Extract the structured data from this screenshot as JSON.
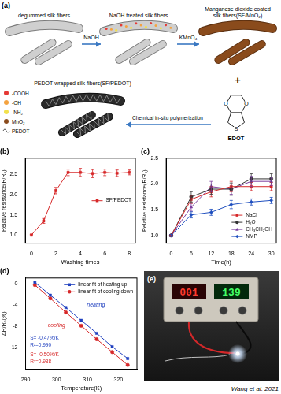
{
  "diagram": {
    "title": "(a)",
    "stages": [
      "degummed silk fibers",
      "NaOH treated silk fibers",
      "Manganese dioxide coated silk fibers(SF/MnO₂)",
      "PEDOT wrapped silk fibers(SF/PEDOT)"
    ],
    "steps": [
      "NaOH",
      "KMnO₄",
      "Chemical in-situ polymerization"
    ],
    "reagent": "EDOT",
    "operator": "+",
    "atoms": [
      "O",
      "O",
      "S"
    ],
    "legend": [
      {
        "label": "-COOH",
        "color": "#e53935",
        "marker": "circle"
      },
      {
        "label": "-OH",
        "color": "#f4a340",
        "marker": "circle"
      },
      {
        "label": "-NH₂",
        "color": "#f2e14c",
        "marker": "circle"
      },
      {
        "label": "MnO₂",
        "color": "#8a4b1c",
        "marker": "circle"
      },
      {
        "label": "PEDOT",
        "color": "#555555",
        "marker": "line"
      }
    ]
  },
  "chart_data": [
    {
      "type": "line",
      "title": "(b)",
      "x_label": "Washing times",
      "y_label": "Relative resistance(R/R₀)",
      "x": [
        0,
        1,
        2,
        3,
        4,
        5,
        6,
        7,
        8
      ],
      "series": [
        {
          "name": "SF/PEDOT",
          "color": "#d62728",
          "marker": "square",
          "line_style": "solid",
          "values": [
            1.0,
            1.35,
            2.1,
            2.55,
            2.55,
            2.52,
            2.55,
            2.53,
            2.55
          ],
          "errors": [
            0.02,
            0.06,
            0.08,
            0.08,
            0.1,
            0.1,
            0.08,
            0.08,
            0.06
          ]
        }
      ],
      "xlim": [
        -0.5,
        8.5
      ],
      "xticks": [
        0,
        2,
        4,
        6,
        8
      ],
      "ylim": [
        0.8,
        2.9
      ],
      "yticks": [
        {
          "value": 1,
          "label": "1.0"
        },
        {
          "value": 1.5,
          "label": "1.5"
        },
        {
          "value": 2,
          "label": "2.0"
        },
        {
          "value": 2.5,
          "label": "2.5"
        }
      ],
      "grid": false,
      "legend": "right"
    },
    {
      "type": "line",
      "title": "(c)",
      "x_label": "Time(h)",
      "y_label": "Relative resistance(R/R₀)",
      "x": [
        0,
        6,
        12,
        18,
        24,
        30
      ],
      "series": [
        {
          "name": "NaCl",
          "color": "#d62728",
          "marker": "square",
          "line_style": "solid",
          "values": [
            1.0,
            1.7,
            1.85,
            1.95,
            1.95,
            1.95
          ],
          "errors": [
            0.02,
            0.08,
            0.1,
            0.1,
            0.08,
            0.08
          ]
        },
        {
          "name": "H₂O",
          "color": "#333333",
          "marker": "circle",
          "line_style": "solid",
          "values": [
            1.0,
            1.75,
            1.9,
            1.9,
            2.1,
            2.1
          ],
          "errors": [
            0.02,
            0.1,
            0.1,
            0.12,
            0.1,
            0.1
          ]
        },
        {
          "name": "CH₃CH₂OH",
          "color": "#7b3fa0",
          "marker": "triangle",
          "line_style": "solid",
          "values": [
            1.0,
            1.55,
            1.95,
            1.9,
            2.05,
            2.05
          ],
          "errors": [
            0.02,
            0.08,
            0.1,
            0.1,
            0.1,
            0.08
          ]
        },
        {
          "name": "NMP",
          "color": "#1f4fbf",
          "marker": "diamond",
          "line_style": "solid",
          "values": [
            1.0,
            1.4,
            1.45,
            1.6,
            1.65,
            1.68
          ],
          "errors": [
            0.02,
            0.06,
            0.06,
            0.08,
            0.06,
            0.06
          ]
        }
      ],
      "xlim": [
        -1.5,
        31.5
      ],
      "xticks": [
        0,
        6,
        12,
        18,
        24,
        30
      ],
      "ylim": [
        0.85,
        2.5
      ],
      "yticks": [
        {
          "value": 1,
          "label": "1.0"
        },
        {
          "value": 1.5,
          "label": "1.5"
        },
        {
          "value": 2,
          "label": "2.0"
        },
        {
          "value": 2.5,
          "label": "2.5"
        }
      ],
      "grid": false,
      "legend": "lower right"
    },
    {
      "type": "line",
      "title": "(d)",
      "x_label": "Temperature(K)",
      "y_label": "ΔR/R₀(%)",
      "x": [
        293,
        298,
        303,
        308,
        313,
        318,
        323
      ],
      "series": [
        {
          "name": "linear fit of heating up",
          "color": "#1f3fbf",
          "marker": "square",
          "line_style": "solid",
          "values": [
            0.2,
            -2.2,
            -4.5,
            -6.9,
            -9.3,
            -11.8,
            -14.0
          ]
        },
        {
          "name": "linear fit of cooling down",
          "color": "#d62728",
          "marker": "circle",
          "line_style": "solid",
          "values": [
            -0.3,
            -2.8,
            -5.4,
            -7.9,
            -10.4,
            -12.8,
            -15.2
          ]
        }
      ],
      "xlim": [
        290,
        326
      ],
      "xticks": [
        290,
        300,
        310,
        320
      ],
      "ylim": [
        -16,
        1
      ],
      "yticks": [
        -12,
        -8,
        -4,
        0
      ],
      "grid": false,
      "legend": "upper right",
      "annotations": [
        {
          "text": "heating",
          "series": "linear fit of heating up"
        },
        {
          "text": "cooling",
          "series": "linear fit of cooling down"
        },
        {
          "text": "S= -0.47%/K",
          "series": "linear fit of heating up"
        },
        {
          "text": "R²=0.990",
          "series": "linear fit of heating up"
        },
        {
          "text": "S= -0.50%/K",
          "series": "linear fit of cooling down"
        },
        {
          "text": "R²=0.988",
          "series": "linear fit of cooling down"
        }
      ]
    }
  ],
  "photo": {
    "title": "(e)",
    "display": [
      "001",
      "139"
    ],
    "credit": "Wang et al. 2021"
  }
}
